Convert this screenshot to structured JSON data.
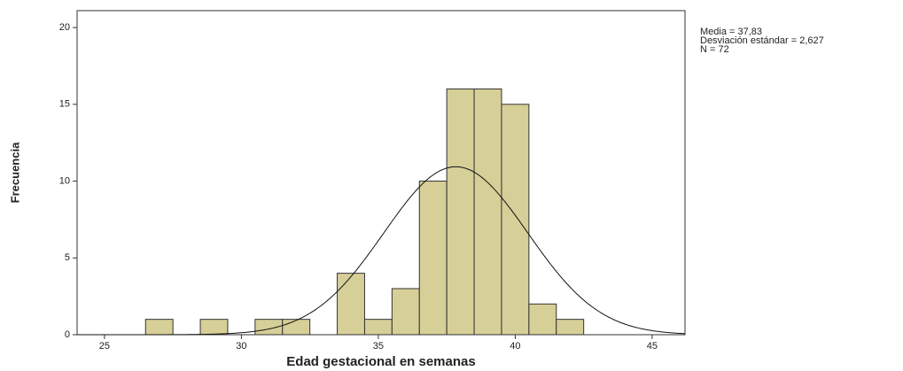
{
  "chart_data": {
    "type": "histogram",
    "x_label": "Edad gestacional en semanas",
    "y_label": "Frecuencia",
    "bins": [
      26.5,
      27.5,
      28.5,
      29.5,
      30.5,
      31.5,
      32.5,
      33.5,
      34.5,
      35.5,
      36.5,
      37.5,
      38.5,
      39.5,
      40.5,
      41.5,
      42.5
    ],
    "counts": [
      1,
      0,
      1,
      0,
      1,
      1,
      0,
      4,
      1,
      3,
      10,
      16,
      16,
      15,
      2,
      1
    ],
    "color": "#d6cf98",
    "edge_color": "#333333",
    "xlim": [
      24,
      46.2
    ],
    "xticks": [
      25,
      30,
      35,
      40,
      45
    ],
    "ylim": [
      0,
      21.1
    ],
    "yticks": [
      0,
      5,
      10,
      15,
      20
    ],
    "annotations": [
      {
        "value": 37.83,
        "label": "Media = 37,83"
      },
      {
        "value": 2.627,
        "label": "Desviación estándar = 2,627"
      },
      {
        "value": 72,
        "label": "N = 72"
      }
    ]
  }
}
